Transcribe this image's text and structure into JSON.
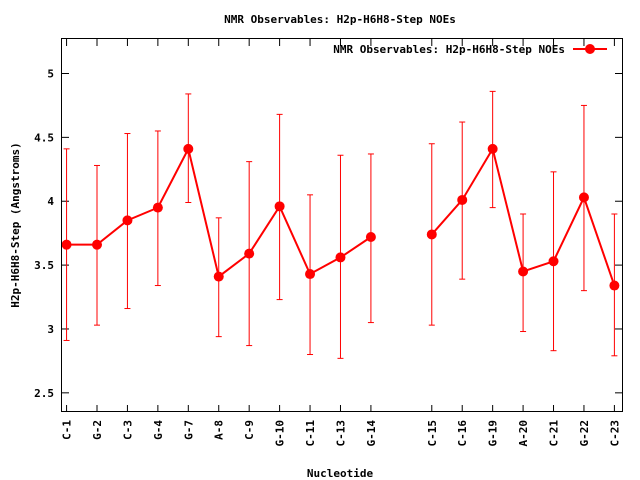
{
  "chart_data": {
    "type": "line",
    "title": "NMR Observables: H2p-H6H8-Step NOEs",
    "xlabel": "Nucleotide",
    "ylabel": "H2p-H6H8-Step (Angstroms)",
    "legend": {
      "label": "NMR Observables: H2p-H6H8-Step NOEs",
      "placement": "top-right"
    },
    "color": "#ff0000",
    "ylim": [
      2.35,
      5.27
    ],
    "xlim": [
      -0.15,
      18.25
    ],
    "yticks": [
      2.5,
      3,
      3.5,
      4,
      4.5,
      5
    ],
    "ytick_labels": [
      "2.5",
      "3",
      "3.5",
      "4",
      "4.5",
      "5"
    ],
    "points": [
      {
        "label": "C-1",
        "x": 0,
        "y": 3.66,
        "lo": 2.91,
        "hi": 4.41,
        "seg": 0
      },
      {
        "label": "G-2",
        "x": 1,
        "y": 3.66,
        "lo": 3.03,
        "hi": 4.28,
        "seg": 0
      },
      {
        "label": "C-3",
        "x": 2,
        "y": 3.85,
        "lo": 3.16,
        "hi": 4.53,
        "seg": 0
      },
      {
        "label": "G-4",
        "x": 3,
        "y": 3.95,
        "lo": 3.34,
        "hi": 4.55,
        "seg": 0
      },
      {
        "label": "G-7",
        "x": 4,
        "y": 4.41,
        "lo": 3.99,
        "hi": 4.84,
        "seg": 0
      },
      {
        "label": "A-8",
        "x": 5,
        "y": 3.41,
        "lo": 2.94,
        "hi": 3.87,
        "seg": 0
      },
      {
        "label": "C-9",
        "x": 6,
        "y": 3.59,
        "lo": 2.87,
        "hi": 4.31,
        "seg": 0
      },
      {
        "label": "G-10",
        "x": 7,
        "y": 3.96,
        "lo": 3.23,
        "hi": 4.68,
        "seg": 0
      },
      {
        "label": "C-11",
        "x": 8,
        "y": 3.43,
        "lo": 2.8,
        "hi": 4.05,
        "seg": 0
      },
      {
        "label": "C-13",
        "x": 9,
        "y": 3.56,
        "lo": 2.77,
        "hi": 4.36,
        "seg": 0
      },
      {
        "label": "G-14",
        "x": 10,
        "y": 3.72,
        "lo": 3.05,
        "hi": 4.37,
        "seg": 0
      },
      {
        "label": "C-15",
        "x": 12,
        "y": 3.74,
        "lo": 3.03,
        "hi": 4.45,
        "seg": 1
      },
      {
        "label": "C-16",
        "x": 13,
        "y": 4.01,
        "lo": 3.39,
        "hi": 4.62,
        "seg": 1
      },
      {
        "label": "G-19",
        "x": 14,
        "y": 4.41,
        "lo": 3.95,
        "hi": 4.86,
        "seg": 1
      },
      {
        "label": "A-20",
        "x": 15,
        "y": 3.45,
        "lo": 2.98,
        "hi": 3.9,
        "seg": 1
      },
      {
        "label": "C-21",
        "x": 16,
        "y": 3.53,
        "lo": 2.83,
        "hi": 4.23,
        "seg": 1
      },
      {
        "label": "G-22",
        "x": 17,
        "y": 4.03,
        "lo": 3.3,
        "hi": 4.75,
        "seg": 1
      },
      {
        "label": "C-23",
        "x": 18,
        "y": 3.34,
        "lo": 2.79,
        "hi": 3.9,
        "seg": 1
      }
    ]
  }
}
